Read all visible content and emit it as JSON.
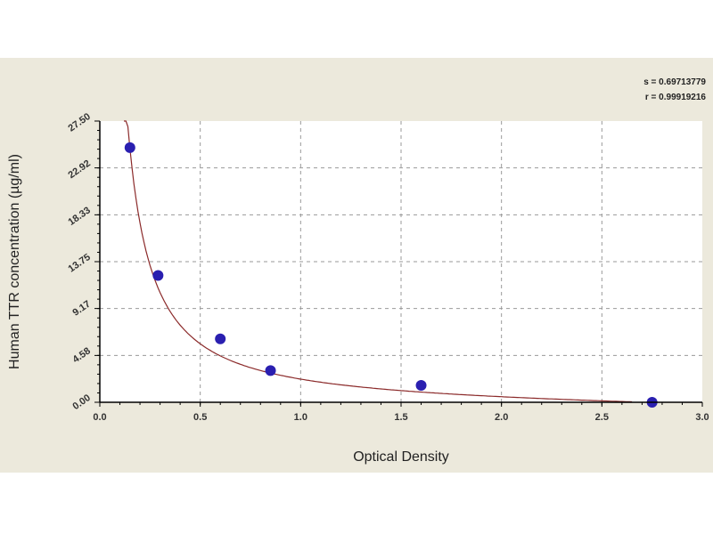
{
  "chart_data": {
    "type": "scatter",
    "xlabel": "Optical Density",
    "ylabel": "Human TTR concentration (µg/ml)",
    "xlim": [
      0,
      3.0
    ],
    "ylim": [
      0,
      27.5
    ],
    "x_ticks": [
      "0.0",
      "0.5",
      "1.0",
      "1.5",
      "2.0",
      "2.5",
      "3.0"
    ],
    "y_ticks": [
      "0.00",
      "4.58",
      "9.17",
      "13.75",
      "18.33",
      "22.92",
      "27.50"
    ],
    "grid": true,
    "stats": [
      "s = 0.69713779",
      "r = 0.99919216"
    ],
    "points": {
      "x": [
        0.15,
        0.29,
        0.6,
        0.85,
        1.6,
        2.75
      ],
      "y": [
        24.9,
        12.4,
        6.2,
        3.1,
        1.65,
        0.0
      ]
    },
    "fit_curve": {
      "type": "power",
      "a": 2.55,
      "b": -1.2
    },
    "colors": {
      "points": "#2a1fb0",
      "curve": "#8b2a2a",
      "background": "#ece9dc"
    }
  }
}
